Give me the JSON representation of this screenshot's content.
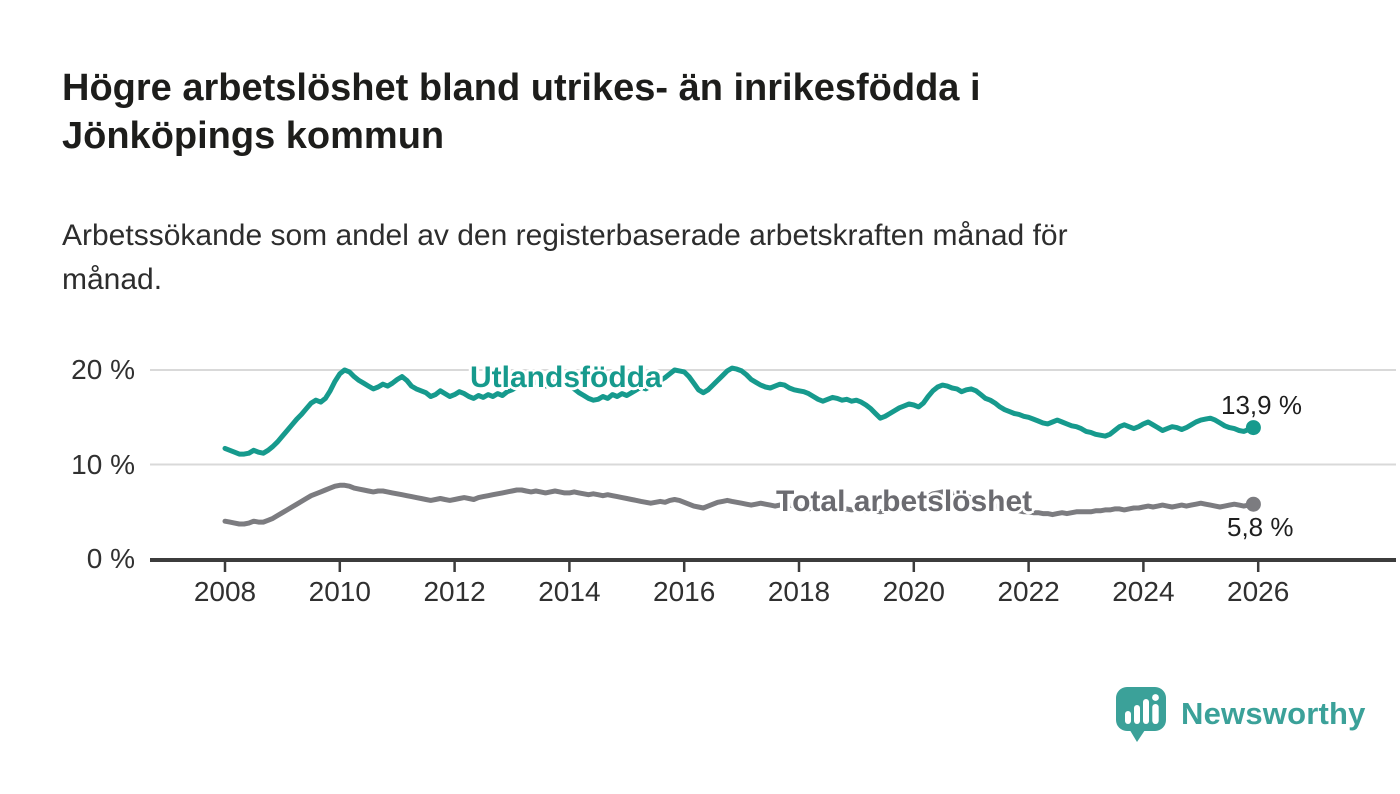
{
  "header": {
    "title_lines": [
      "Högre arbetslöshet bland utrikes- än inrikesfödda i",
      "Jönköpings kommun"
    ],
    "subtitle_lines": [
      "Arbetssökande som andel av den registerbaserade arbetskraften månad för",
      "månad."
    ]
  },
  "chart_data": {
    "type": "line",
    "title": "Högre arbetslöshet bland utrikes- än inrikesfödda i Jönköpings kommun",
    "subtitle": "Arbetssökande som andel av den registerbaserade arbetskraften månad för månad.",
    "frequency": "monthly",
    "x_start": "2008-01",
    "x_end": "2025-12",
    "x_ticks": [
      2008,
      2010,
      2012,
      2014,
      2016,
      2018,
      2020,
      2022,
      2024,
      2026
    ],
    "y_ticks": [
      0,
      10,
      20
    ],
    "y_tick_labels": [
      "0 %",
      "10 %",
      "20 %"
    ],
    "ylim": [
      0,
      21.5
    ],
    "grid": "horizontal",
    "legend_position": "inline-labels",
    "series": [
      {
        "name": "Utlandsfödda",
        "color": "#169a8d",
        "end_annotation": "13,9 %",
        "last_value": 13.9,
        "values": [
          11.7,
          11.5,
          11.3,
          11.1,
          11.1,
          11.2,
          11.5,
          11.3,
          11.2,
          11.5,
          11.9,
          12.4,
          13.0,
          13.6,
          14.2,
          14.8,
          15.3,
          15.9,
          16.5,
          16.8,
          16.6,
          17.0,
          17.8,
          18.8,
          19.6,
          20.0,
          19.8,
          19.3,
          18.9,
          18.6,
          18.3,
          18.0,
          18.2,
          18.5,
          18.3,
          18.6,
          19.0,
          19.3,
          18.9,
          18.3,
          18.0,
          17.8,
          17.6,
          17.2,
          17.4,
          17.8,
          17.5,
          17.2,
          17.4,
          17.7,
          17.5,
          17.2,
          17.0,
          17.3,
          17.1,
          17.4,
          17.2,
          17.5,
          17.3,
          17.7,
          17.9,
          18.2,
          18.4,
          18.3,
          18.5,
          18.7,
          18.5,
          18.3,
          18.5,
          18.8,
          19.0,
          18.8,
          18.4,
          18.0,
          17.6,
          17.3,
          17.0,
          16.8,
          16.9,
          17.2,
          17.0,
          17.4,
          17.2,
          17.5,
          17.3,
          17.6,
          17.9,
          18.2,
          18.0,
          18.3,
          18.6,
          18.9,
          19.2,
          19.6,
          20.0,
          19.9,
          19.8,
          19.3,
          18.6,
          17.9,
          17.6,
          17.9,
          18.4,
          18.9,
          19.4,
          19.9,
          20.2,
          20.1,
          19.9,
          19.5,
          19.0,
          18.7,
          18.4,
          18.2,
          18.1,
          18.3,
          18.5,
          18.4,
          18.1,
          17.9,
          17.8,
          17.7,
          17.5,
          17.2,
          16.9,
          16.7,
          16.9,
          17.1,
          17.0,
          16.8,
          16.9,
          16.7,
          16.8,
          16.6,
          16.3,
          15.9,
          15.4,
          14.9,
          15.1,
          15.4,
          15.7,
          16.0,
          16.2,
          16.4,
          16.3,
          16.1,
          16.5,
          17.2,
          17.8,
          18.2,
          18.4,
          18.3,
          18.1,
          18.0,
          17.7,
          17.9,
          18.0,
          17.8,
          17.4,
          17.0,
          16.8,
          16.5,
          16.1,
          15.8,
          15.6,
          15.4,
          15.3,
          15.1,
          15.0,
          14.8,
          14.6,
          14.4,
          14.3,
          14.5,
          14.7,
          14.5,
          14.3,
          14.1,
          14.0,
          13.8,
          13.5,
          13.4,
          13.2,
          13.1,
          13.0,
          13.2,
          13.6,
          14.0,
          14.2,
          14.0,
          13.8,
          14.0,
          14.3,
          14.5,
          14.2,
          13.9,
          13.6,
          13.8,
          14.0,
          13.9,
          13.7,
          13.9,
          14.2,
          14.5,
          14.7,
          14.8,
          14.9,
          14.7,
          14.4,
          14.1,
          13.9,
          13.8,
          13.6,
          13.5,
          13.7,
          13.9
        ]
      },
      {
        "name": "Total arbetslöshet",
        "color": "#7c7c80",
        "end_annotation": "5,8 %",
        "last_value": 5.8,
        "values": [
          4.0,
          3.9,
          3.8,
          3.7,
          3.7,
          3.8,
          4.0,
          3.9,
          3.9,
          4.1,
          4.3,
          4.6,
          4.9,
          5.2,
          5.5,
          5.8,
          6.1,
          6.4,
          6.7,
          6.9,
          7.1,
          7.3,
          7.5,
          7.7,
          7.8,
          7.8,
          7.7,
          7.5,
          7.4,
          7.3,
          7.2,
          7.1,
          7.2,
          7.2,
          7.1,
          7.0,
          6.9,
          6.8,
          6.7,
          6.6,
          6.5,
          6.4,
          6.3,
          6.2,
          6.3,
          6.4,
          6.3,
          6.2,
          6.3,
          6.4,
          6.5,
          6.4,
          6.3,
          6.5,
          6.6,
          6.7,
          6.8,
          6.9,
          7.0,
          7.1,
          7.2,
          7.3,
          7.3,
          7.2,
          7.1,
          7.2,
          7.1,
          7.0,
          7.1,
          7.2,
          7.1,
          7.0,
          7.0,
          7.1,
          7.0,
          6.9,
          6.8,
          6.9,
          6.8,
          6.7,
          6.8,
          6.7,
          6.6,
          6.5,
          6.4,
          6.3,
          6.2,
          6.1,
          6.0,
          5.9,
          6.0,
          6.1,
          6.0,
          6.2,
          6.3,
          6.2,
          6.0,
          5.8,
          5.6,
          5.5,
          5.4,
          5.6,
          5.8,
          6.0,
          6.1,
          6.2,
          6.1,
          6.0,
          5.9,
          5.8,
          5.7,
          5.8,
          5.9,
          5.8,
          5.7,
          5.6,
          5.7,
          5.8,
          5.7,
          5.6,
          5.5,
          5.4,
          5.3,
          5.4,
          5.5,
          5.4,
          5.3,
          5.4,
          5.3,
          5.2,
          5.3,
          5.2,
          5.3,
          5.2,
          5.1,
          5.2,
          5.1,
          5.0,
          5.1,
          5.2,
          5.3,
          5.4,
          5.5,
          5.6,
          5.7,
          5.8,
          6.1,
          6.6,
          6.9,
          7.0,
          7.1,
          7.0,
          6.9,
          6.8,
          6.7,
          6.6,
          6.5,
          6.4,
          6.2,
          6.0,
          5.8,
          5.6,
          5.5,
          5.4,
          5.3,
          5.2,
          5.1,
          5.0,
          5.0,
          4.9,
          4.9,
          4.8,
          4.8,
          4.7,
          4.8,
          4.9,
          4.8,
          4.9,
          5.0,
          5.0,
          5.0,
          5.0,
          5.1,
          5.1,
          5.2,
          5.2,
          5.3,
          5.3,
          5.2,
          5.3,
          5.4,
          5.4,
          5.5,
          5.6,
          5.5,
          5.6,
          5.7,
          5.6,
          5.5,
          5.6,
          5.7,
          5.6,
          5.7,
          5.8,
          5.9,
          5.8,
          5.7,
          5.6,
          5.5,
          5.6,
          5.7,
          5.8,
          5.7,
          5.6,
          5.7,
          5.8
        ]
      }
    ]
  },
  "footer": {
    "brand": "Newsworthy"
  },
  "colors": {
    "accent_teal": "#169a8d",
    "series_gray": "#7c7c80",
    "logo_teal": "#3ba199",
    "gridline": "#d9d9d9",
    "axis": "#3c3c3c",
    "title_text": "#1d1d1b"
  }
}
